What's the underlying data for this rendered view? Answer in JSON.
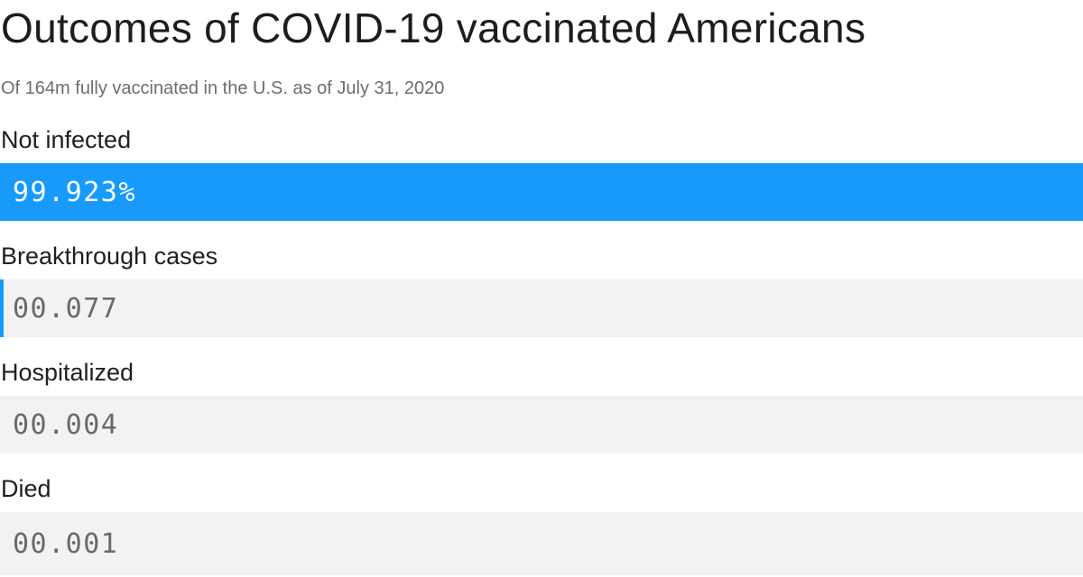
{
  "chart_data": {
    "type": "bar",
    "orientation": "horizontal",
    "title": "Outcomes of COVID-19 vaccinated Americans",
    "subtitle": "Of 164m fully vaccinated in the U.S. as of July 31, 2020",
    "xlim": [
      0,
      100
    ],
    "unit": "percent",
    "grid": false,
    "legend": false,
    "categories": [
      "Not infected",
      "Breakthrough cases",
      "Hospitalized",
      "Died"
    ],
    "values": [
      99.923,
      0.077,
      0.004,
      0.001
    ],
    "rows": [
      {
        "label": "Not infected",
        "value": 99.923,
        "value_label": "99.923%"
      },
      {
        "label": "Breakthrough cases",
        "value": 0.077,
        "value_label": "00.077"
      },
      {
        "label": "Hospitalized",
        "value": 0.004,
        "value_label": "00.004"
      },
      {
        "label": "Died",
        "value": 0.001,
        "value_label": "00.001"
      }
    ],
    "colors": {
      "bar_fill_blue": "#189afb",
      "bar_track_gray": "#f2f2f2",
      "value_text_on_fill": "#ffffff",
      "value_text_on_track": "#696969",
      "title_text": "#1d1d1d",
      "subtitle_text": "#6d6d6d",
      "label_text": "#202020"
    }
  }
}
